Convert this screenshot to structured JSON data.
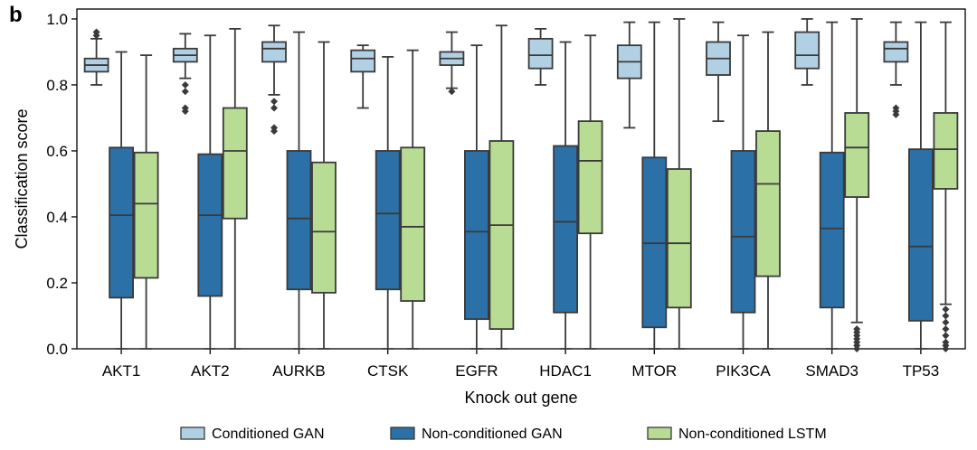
{
  "chart_data": {
    "type": "boxplot",
    "panel_label": "b",
    "xlabel": "Knock out gene",
    "ylabel": "Classification score",
    "ylim": [
      0,
      1.03
    ],
    "yticks": [
      0.0,
      0.2,
      0.4,
      0.6,
      0.8,
      1.0
    ],
    "ytick_labels": [
      "0.0",
      "0.2",
      "0.4",
      "0.6",
      "0.8",
      "1.0"
    ],
    "categories": [
      "AKT1",
      "AKT2",
      "AURKB",
      "CTSK",
      "EGFR",
      "HDAC1",
      "MTOR",
      "PIK3CA",
      "SMAD3",
      "TP53"
    ],
    "legend_position": "bottom",
    "series": [
      {
        "name": "Conditioned GAN",
        "color": "#b2d0e4",
        "boxes": [
          {
            "whislo": 0.8,
            "q1": 0.84,
            "med": 0.86,
            "q3": 0.88,
            "whishi": 0.94,
            "fliers": [
              0.95,
              0.96
            ]
          },
          {
            "whislo": 0.82,
            "q1": 0.87,
            "med": 0.89,
            "q3": 0.91,
            "whishi": 0.955,
            "fliers": [
              0.8,
              0.78,
              0.73,
              0.72
            ]
          },
          {
            "whislo": 0.77,
            "q1": 0.87,
            "med": 0.91,
            "q3": 0.93,
            "whishi": 0.98,
            "fliers": [
              0.75,
              0.73,
              0.67,
              0.66
            ]
          },
          {
            "whislo": 0.73,
            "q1": 0.84,
            "med": 0.88,
            "q3": 0.905,
            "whishi": 0.92,
            "fliers": []
          },
          {
            "whislo": 0.79,
            "q1": 0.86,
            "med": 0.88,
            "q3": 0.9,
            "whishi": 0.96,
            "fliers": [
              0.78
            ]
          },
          {
            "whislo": 0.8,
            "q1": 0.85,
            "med": 0.89,
            "q3": 0.94,
            "whishi": 0.97,
            "fliers": []
          },
          {
            "whislo": 0.67,
            "q1": 0.82,
            "med": 0.87,
            "q3": 0.92,
            "whishi": 0.99,
            "fliers": []
          },
          {
            "whislo": 0.69,
            "q1": 0.83,
            "med": 0.88,
            "q3": 0.93,
            "whishi": 0.99,
            "fliers": []
          },
          {
            "whislo": 0.8,
            "q1": 0.85,
            "med": 0.89,
            "q3": 0.96,
            "whishi": 1.0,
            "fliers": []
          },
          {
            "whislo": 0.8,
            "q1": 0.87,
            "med": 0.91,
            "q3": 0.93,
            "whishi": 0.99,
            "fliers": [
              0.73,
              0.72,
              0.71
            ]
          }
        ]
      },
      {
        "name": "Non-conditioned GAN",
        "color": "#2b71a7",
        "boxes": [
          {
            "whislo": 0.0,
            "q1": 0.155,
            "med": 0.405,
            "q3": 0.61,
            "whishi": 0.9,
            "fliers": []
          },
          {
            "whislo": 0.0,
            "q1": 0.16,
            "med": 0.405,
            "q3": 0.59,
            "whishi": 0.95,
            "fliers": []
          },
          {
            "whislo": 0.0,
            "q1": 0.18,
            "med": 0.395,
            "q3": 0.6,
            "whishi": 0.96,
            "fliers": []
          },
          {
            "whislo": 0.0,
            "q1": 0.18,
            "med": 0.41,
            "q3": 0.6,
            "whishi": 0.885,
            "fliers": []
          },
          {
            "whislo": 0.0,
            "q1": 0.09,
            "med": 0.355,
            "q3": 0.6,
            "whishi": 0.92,
            "fliers": []
          },
          {
            "whislo": 0.0,
            "q1": 0.11,
            "med": 0.385,
            "q3": 0.615,
            "whishi": 0.93,
            "fliers": []
          },
          {
            "whislo": 0.0,
            "q1": 0.065,
            "med": 0.32,
            "q3": 0.58,
            "whishi": 0.99,
            "fliers": []
          },
          {
            "whislo": 0.0,
            "q1": 0.11,
            "med": 0.34,
            "q3": 0.6,
            "whishi": 0.95,
            "fliers": []
          },
          {
            "whislo": 0.0,
            "q1": 0.125,
            "med": 0.365,
            "q3": 0.595,
            "whishi": 0.99,
            "fliers": []
          },
          {
            "whislo": 0.0,
            "q1": 0.085,
            "med": 0.31,
            "q3": 0.605,
            "whishi": 0.99,
            "fliers": []
          }
        ]
      },
      {
        "name": "Non-conditioned LSTM",
        "color": "#b9dc95",
        "boxes": [
          {
            "whislo": 0.0,
            "q1": 0.215,
            "med": 0.44,
            "q3": 0.595,
            "whishi": 0.89,
            "fliers": []
          },
          {
            "whislo": 0.0,
            "q1": 0.395,
            "med": 0.6,
            "q3": 0.73,
            "whishi": 0.97,
            "fliers": []
          },
          {
            "whislo": 0.0,
            "q1": 0.17,
            "med": 0.355,
            "q3": 0.565,
            "whishi": 0.93,
            "fliers": []
          },
          {
            "whislo": 0.0,
            "q1": 0.145,
            "med": 0.37,
            "q3": 0.61,
            "whishi": 0.905,
            "fliers": []
          },
          {
            "whislo": 0.0,
            "q1": 0.06,
            "med": 0.375,
            "q3": 0.63,
            "whishi": 0.98,
            "fliers": []
          },
          {
            "whislo": 0.0,
            "q1": 0.35,
            "med": 0.57,
            "q3": 0.69,
            "whishi": 0.95,
            "fliers": []
          },
          {
            "whislo": 0.0,
            "q1": 0.125,
            "med": 0.32,
            "q3": 0.545,
            "whishi": 1.0,
            "fliers": []
          },
          {
            "whislo": 0.0,
            "q1": 0.22,
            "med": 0.5,
            "q3": 0.66,
            "whishi": 0.96,
            "fliers": []
          },
          {
            "whislo": 0.08,
            "q1": 0.46,
            "med": 0.61,
            "q3": 0.715,
            "whishi": 1.0,
            "fliers": [
              0.06,
              0.05,
              0.04,
              0.03,
              0.02,
              0.01,
              0.0
            ]
          },
          {
            "whislo": 0.135,
            "q1": 0.485,
            "med": 0.605,
            "q3": 0.715,
            "whishi": 0.99,
            "fliers": [
              0.12,
              0.1,
              0.08,
              0.06,
              0.04,
              0.02,
              0.01,
              0.0
            ]
          }
        ]
      }
    ]
  }
}
